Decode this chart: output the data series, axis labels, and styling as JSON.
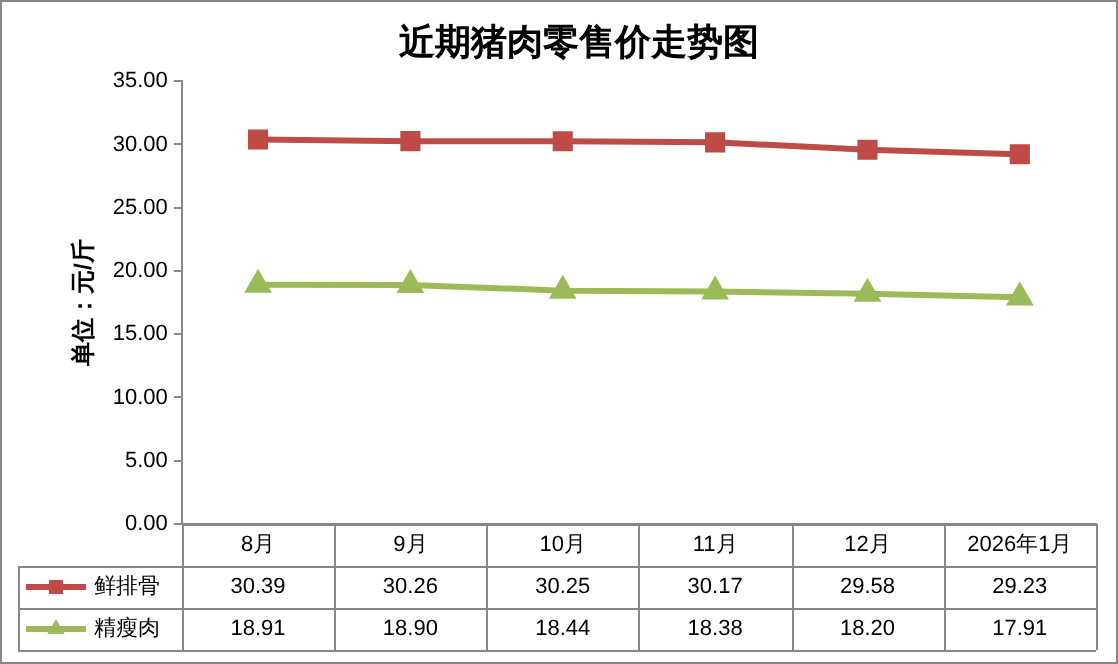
{
  "chart_data": {
    "type": "line",
    "title": "近期猪肉零售价走势图",
    "ylabel": "单位：元/斤",
    "categories": [
      "8月",
      "9月",
      "10月",
      "11月",
      "12月",
      "2026年1月"
    ],
    "series": [
      {
        "name": "鲜排骨",
        "color": "#be4b48",
        "marker": "square",
        "values": [
          30.39,
          30.26,
          30.25,
          30.17,
          29.58,
          29.23
        ],
        "value_labels": [
          "30.39",
          "30.26",
          "30.25",
          "30.17",
          "29.58",
          "29.23"
        ]
      },
      {
        "name": "精瘦肉",
        "color": "#9bbb59",
        "marker": "triangle",
        "values": [
          18.91,
          18.9,
          18.44,
          18.38,
          18.2,
          17.91
        ],
        "value_labels": [
          "18.91",
          "18.90",
          "18.44",
          "18.38",
          "18.20",
          "17.91"
        ]
      }
    ],
    "ylim": [
      0,
      35
    ],
    "yticks": [
      {
        "value": 0,
        "label": "0.00"
      },
      {
        "value": 5,
        "label": "5.00"
      },
      {
        "value": 10,
        "label": "10.00"
      },
      {
        "value": 15,
        "label": "15.00"
      },
      {
        "value": 20,
        "label": "20.00"
      },
      {
        "value": 25,
        "label": "25.00"
      },
      {
        "value": 30,
        "label": "30.00"
      },
      {
        "value": 35,
        "label": "35.00"
      }
    ],
    "grid": false,
    "legend": "bottom left"
  }
}
